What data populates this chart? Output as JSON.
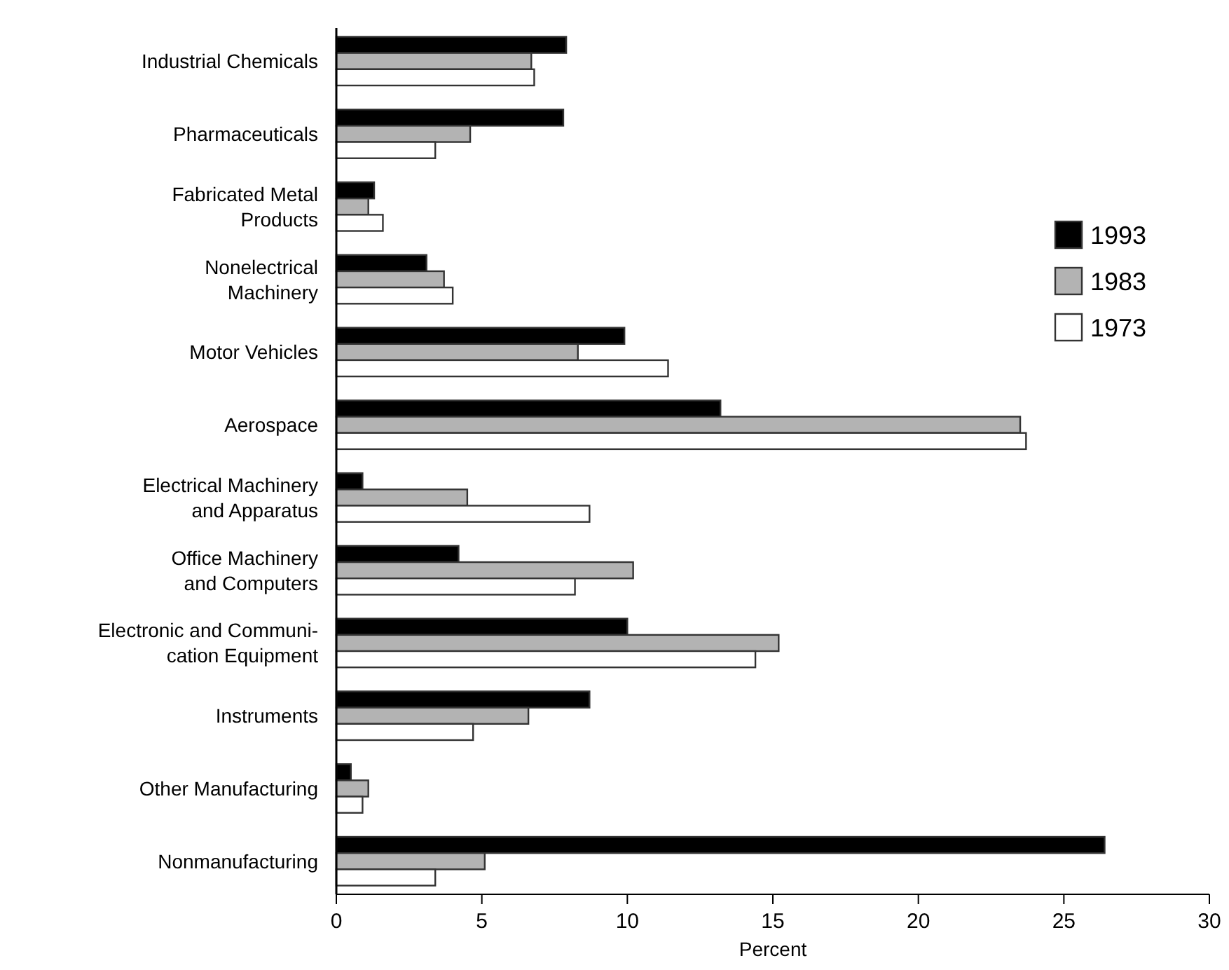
{
  "chart_data": {
    "type": "bar",
    "orientation": "horizontal",
    "xlabel": "Percent",
    "categories": [
      "Industrial Chemicals",
      "Pharmaceuticals",
      "Fabricated Metal\nProducts",
      "Nonelectrical\nMachinery",
      "Motor Vehicles",
      "Aerospace",
      "Electrical Machinery\nand Apparatus",
      "Office Machinery\nand Computers",
      "Electronic and Communi-\ncation Equipment",
      "Instruments",
      "Other Manufacturing",
      "Nonmanufacturing"
    ],
    "series": [
      {
        "name": "1993",
        "color": "#000000",
        "values": [
          7.9,
          7.8,
          1.3,
          3.1,
          9.9,
          13.2,
          0.9,
          4.2,
          10.0,
          8.7,
          0.5,
          26.4
        ]
      },
      {
        "name": "1983",
        "color": "#b3b3b3",
        "values": [
          6.7,
          4.6,
          1.1,
          3.7,
          8.3,
          23.5,
          4.5,
          10.2,
          15.2,
          6.6,
          1.1,
          5.1
        ]
      },
      {
        "name": "1973",
        "color": "#ffffff",
        "values": [
          6.8,
          3.4,
          1.6,
          4.0,
          11.4,
          23.7,
          8.7,
          8.2,
          14.4,
          4.7,
          0.9,
          3.4
        ]
      }
    ],
    "xlim": [
      0,
      30
    ],
    "xticks": [
      0,
      5,
      10,
      15,
      20,
      25,
      30
    ],
    "legend": "top right",
    "grid": false
  }
}
